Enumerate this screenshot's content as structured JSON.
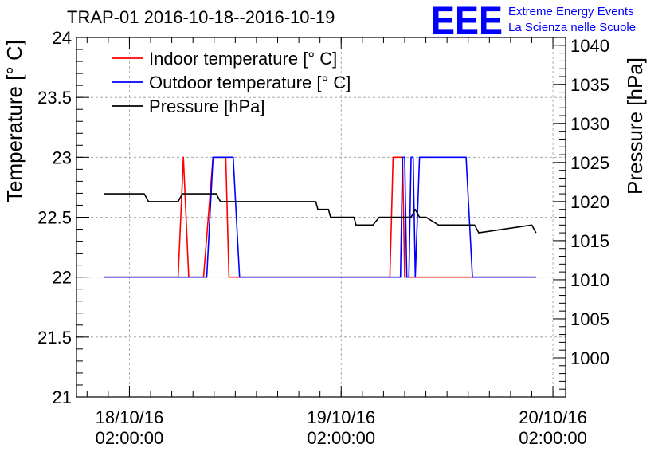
{
  "chart_data": {
    "type": "line",
    "title": "TRAP-01 2016-10-18--2016-10-19",
    "ylabel_left": "Temperature [° C]",
    "ylabel_right": "Pressure [hPa]",
    "ylim_left": [
      21,
      24
    ],
    "ylim_right": [
      995,
      1041
    ],
    "xlim": [
      -0.25,
      2.06
    ],
    "grid": true,
    "legend_position": "top-left",
    "x_ticks": [
      {
        "x": 0,
        "date": "18/10/16",
        "time": "02:00:00"
      },
      {
        "x": 1,
        "date": "19/10/16",
        "time": "02:00:00"
      },
      {
        "x": 2,
        "date": "20/10/16",
        "time": "02:00:00"
      }
    ],
    "y_ticks_left": [
      "21",
      "21.5",
      "22",
      "22.5",
      "23",
      "23.5",
      "24"
    ],
    "y_tick_values_left": [
      21,
      21.5,
      22,
      22.5,
      23,
      23.5,
      24
    ],
    "y_ticks_right": [
      "1000",
      "1005",
      "1010",
      "1015",
      "1020",
      "1025",
      "1030",
      "1035",
      "1040"
    ],
    "y_tick_values_right": [
      1000,
      1005,
      1010,
      1015,
      1020,
      1025,
      1030,
      1035,
      1040
    ],
    "series": [
      {
        "name": "Indoor temperature [° C]",
        "color": "#ff0000",
        "axis": "left",
        "x": [
          -0.12,
          0.23,
          0.255,
          0.28,
          0.31,
          0.35,
          0.395,
          0.41,
          0.455,
          0.47,
          1.23,
          1.245,
          1.29,
          1.3,
          1.92
        ],
        "y": [
          22,
          22,
          23,
          22,
          22,
          22,
          23,
          23,
          23,
          22,
          22,
          23,
          23,
          22,
          22
        ]
      },
      {
        "name": "Outdoor temperature [° C]",
        "color": "#0000ff",
        "axis": "left",
        "x": [
          -0.12,
          0.365,
          0.395,
          0.49,
          0.52,
          1.27,
          1.28,
          1.29,
          1.3,
          1.31,
          1.32,
          1.33,
          1.34,
          1.35,
          1.37,
          1.41,
          1.46,
          1.5,
          1.55,
          1.59,
          1.62,
          1.64,
          1.92
        ],
        "y": [
          22,
          22,
          23,
          23,
          22,
          22,
          22,
          23,
          23,
          22,
          22,
          23,
          23,
          22,
          23,
          23,
          23,
          23,
          23,
          23,
          22,
          22,
          22
        ]
      },
      {
        "name": "Pressure [hPa]",
        "color": "#000000",
        "axis": "right",
        "x": [
          -0.12,
          0.07,
          0.09,
          0.23,
          0.25,
          0.41,
          0.43,
          0.68,
          0.7,
          0.88,
          0.89,
          0.94,
          0.95,
          1.06,
          1.07,
          1.15,
          1.18,
          1.22,
          1.26,
          1.33,
          1.35,
          1.37,
          1.4,
          1.46,
          1.48,
          1.63,
          1.65,
          1.9,
          1.92
        ],
        "y": [
          1021,
          1021,
          1020,
          1020,
          1021,
          1021,
          1020,
          1020,
          1020,
          1020,
          1019,
          1019,
          1018,
          1018,
          1017,
          1017,
          1018,
          1018,
          1018,
          1018,
          1019,
          1018,
          1018,
          1017,
          1017,
          1017,
          1016,
          1017,
          1016
        ]
      }
    ]
  },
  "logo": {
    "mark": "EEE",
    "line1": "Extreme Energy Events",
    "line2": "La Scienza nelle Scuole",
    "color": "#0000ff"
  }
}
